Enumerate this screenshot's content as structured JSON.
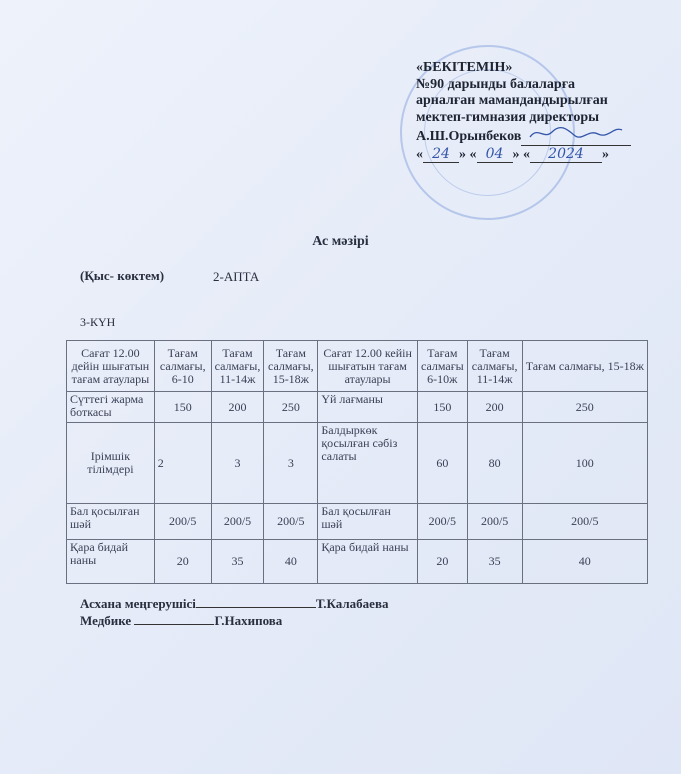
{
  "approval": {
    "heading": "«БЕКІТЕМІН»",
    "line1": "№90 дарынды балаларға",
    "line2": "арналған мамандандырылған",
    "line3": "мектеп-гимназия директоры",
    "name": "А.Ш.Орынбеков",
    "date_day": "24",
    "date_month": "04",
    "date_year": "2024"
  },
  "title": "Ас мәзірі",
  "season": "(Қыс- көктем)",
  "week": "2-АПТА",
  "day": "3-КҮН",
  "table": {
    "headers": [
      "Сағат  12.00 дейін шығатын тағам атаулары",
      "Тағам салмағы, 6-10",
      "Тағам салмағы, 11-14ж",
      "Тағам салмағы, 15-18ж",
      "Сағат  12.00 кейін шығатын тағам атаулары",
      "Тағам салмағы 6-10ж",
      "Тағам салмағы, 11-14ж",
      "Тағам салмағы, 15-18ж"
    ],
    "rows": [
      [
        "Сүттегі жарма боткасы",
        "150",
        "200",
        "250",
        "Үй лағманы",
        "150",
        "200",
        "250"
      ],
      [
        "Ірімшік тілімдері",
        "2",
        "3",
        "3",
        "Балдыркөк қосылған сәбіз салаты",
        "60",
        "80",
        "100"
      ],
      [
        "Бал қосылған шәй",
        "200/5",
        "200/5",
        "200/5",
        "Бал қосылған шәй",
        "200/5",
        "200/5",
        "200/5"
      ],
      [
        "Қара бидай наны",
        "20",
        "35",
        "40",
        "Қара бидай наны",
        "20",
        "35",
        "40"
      ]
    ]
  },
  "signatures": {
    "cook_label": "Асхана меңгерушісі",
    "cook_name": "Т.Калабаева",
    "nurse_label": "Медбике",
    "nurse_name": "Г.Нахипова"
  }
}
